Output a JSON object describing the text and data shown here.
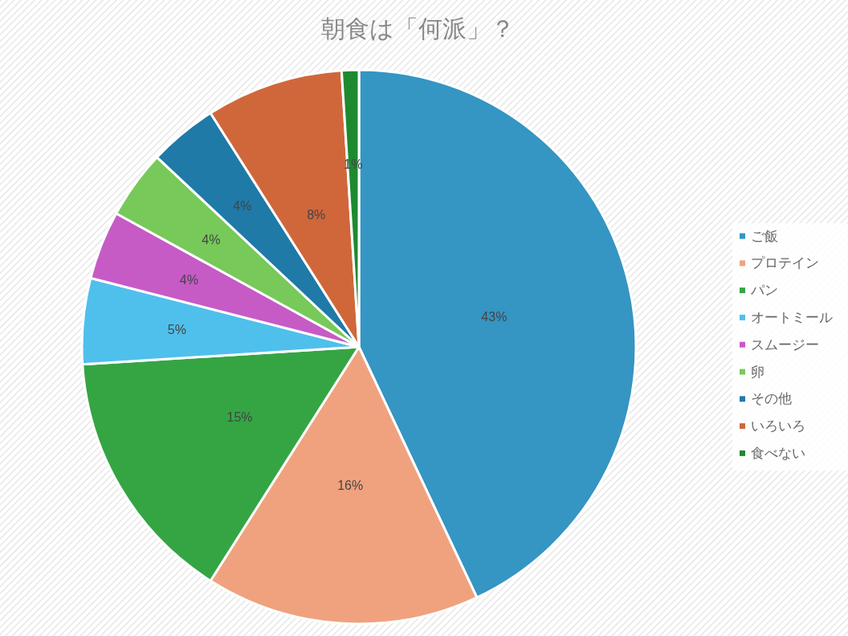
{
  "chart_data": {
    "type": "pie",
    "title": "朝食は「何派」？",
    "categories": [
      "ご飯",
      "プロテイン",
      "パン",
      "オートミール",
      "スムージー",
      "卵",
      "その他",
      "いろいろ",
      "食べない"
    ],
    "values": [
      43,
      16,
      15,
      5,
      4,
      4,
      4,
      8,
      1
    ],
    "value_labels": [
      "43%",
      "16%",
      "15%",
      "5%",
      "4%",
      "4%",
      "4%",
      "8%",
      "1%"
    ],
    "colors": [
      "#3595c3",
      "#f0a27e",
      "#35a544",
      "#4fc0ec",
      "#c65bc6",
      "#77c95a",
      "#1f7aa8",
      "#d0673a",
      "#1e8a30"
    ],
    "legend": "right"
  }
}
